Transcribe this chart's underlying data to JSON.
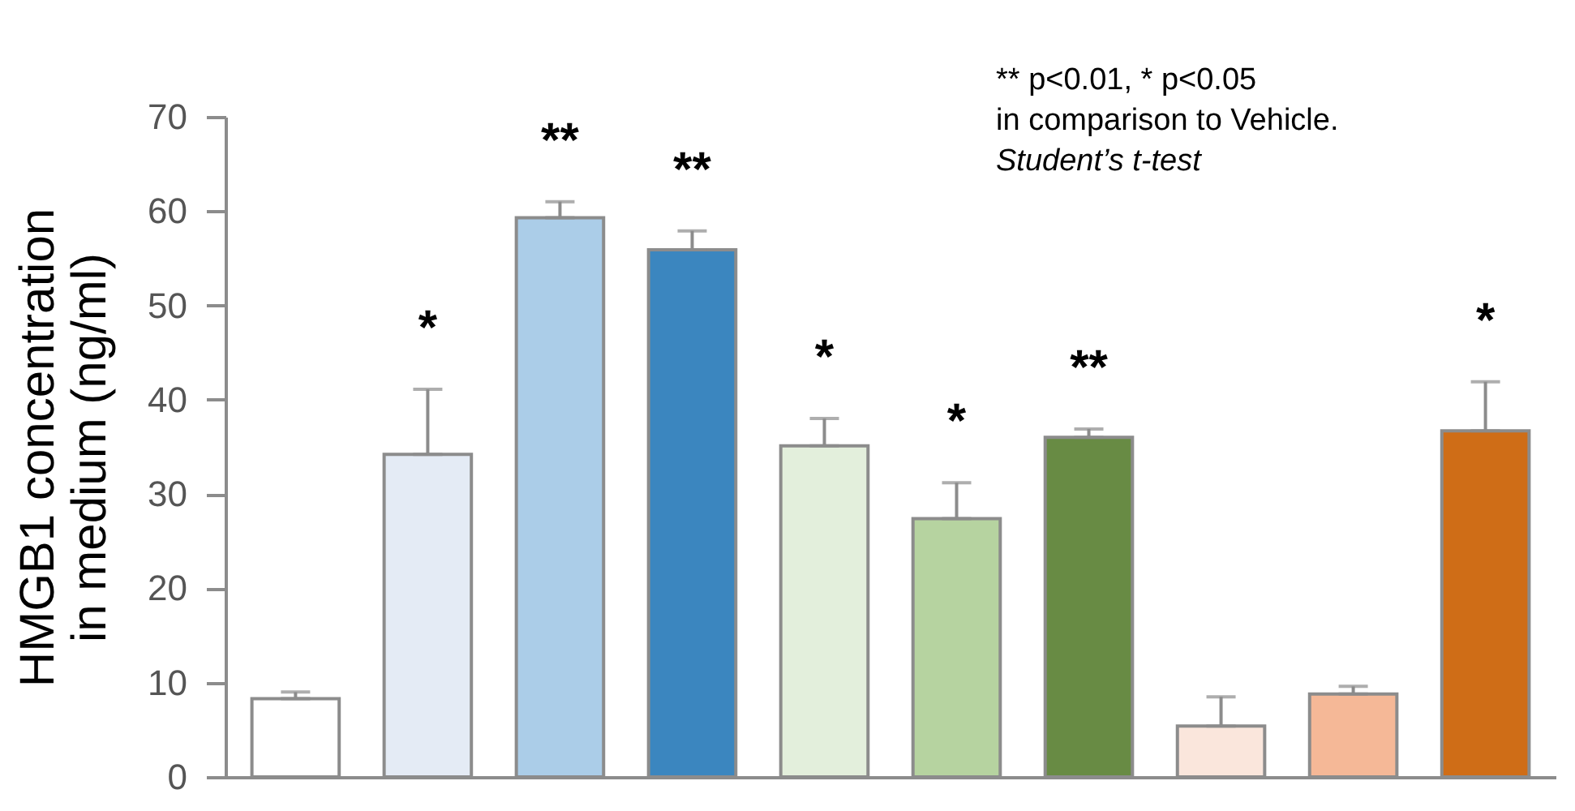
{
  "chart_data": {
    "type": "bar",
    "ylabel": "HMGB1 concentration\nin medium  (ng/ml)",
    "categories": [
      null,
      null,
      null,
      null,
      null,
      null,
      null,
      null,
      null,
      null
    ],
    "values": [
      8.3,
      34.2,
      59.3,
      55.9,
      35.1,
      27.4,
      36.0,
      5.4,
      8.8,
      36.7
    ],
    "colors": [
      "#ffffff",
      "#e4ebf5",
      "#abcde8",
      "#3b86bf",
      "#e3efdc",
      "#b6d3a0",
      "#688b44",
      "#fae6dc",
      "#f5b897",
      "#cf6d17"
    ],
    "errors": [
      [
        8.3,
        9.0
      ],
      [
        34.2,
        41.1
      ],
      [
        59.3,
        61.0
      ],
      [
        55.9,
        57.9
      ],
      [
        35.1,
        38.0
      ],
      [
        27.4,
        31.2
      ],
      [
        36.0,
        36.9
      ],
      [
        5.4,
        8.5
      ],
      [
        8.8,
        9.6
      ],
      [
        36.7,
        41.9
      ]
    ],
    "value_labels": [
      null,
      "*",
      "**",
      "**",
      "*",
      "*",
      "**",
      null,
      null,
      "*"
    ],
    "annotations": [
      "** p<0.01, * p<0.05",
      " in comparison to Vehicle.",
      "Student’s t-test"
    ],
    "ylim": [
      0,
      70
    ],
    "yticks": [
      0,
      10,
      20,
      30,
      40,
      50,
      60,
      70
    ],
    "grid": false,
    "tick_labels": "y"
  }
}
